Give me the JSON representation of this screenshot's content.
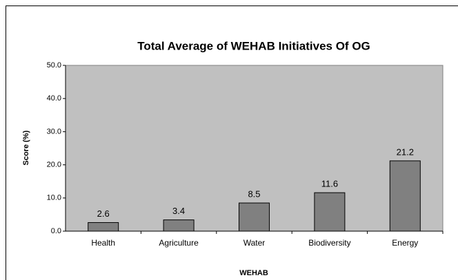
{
  "chart_data": {
    "type": "bar",
    "title": "Total Average of WEHAB Initiatives Of OG",
    "x_label": "WEHAB",
    "y_label": "Score (%)",
    "categories": [
      "Health",
      "Agriculture",
      "Water",
      "Biodiversity",
      "Energy"
    ],
    "values": [
      2.6,
      3.4,
      8.5,
      11.6,
      21.2
    ],
    "color": "#808080",
    "plot_background": "#c0c0c0",
    "ylim": [
      0,
      50
    ],
    "yticks": [
      {
        "value": 0,
        "label": "0.0"
      },
      {
        "value": 10,
        "label": "10.0"
      },
      {
        "value": 20,
        "label": "20.0"
      },
      {
        "value": 30,
        "label": "30.0"
      },
      {
        "value": 40,
        "label": "40.0"
      },
      {
        "value": 50,
        "label": "50.0"
      }
    ],
    "grid": false
  }
}
